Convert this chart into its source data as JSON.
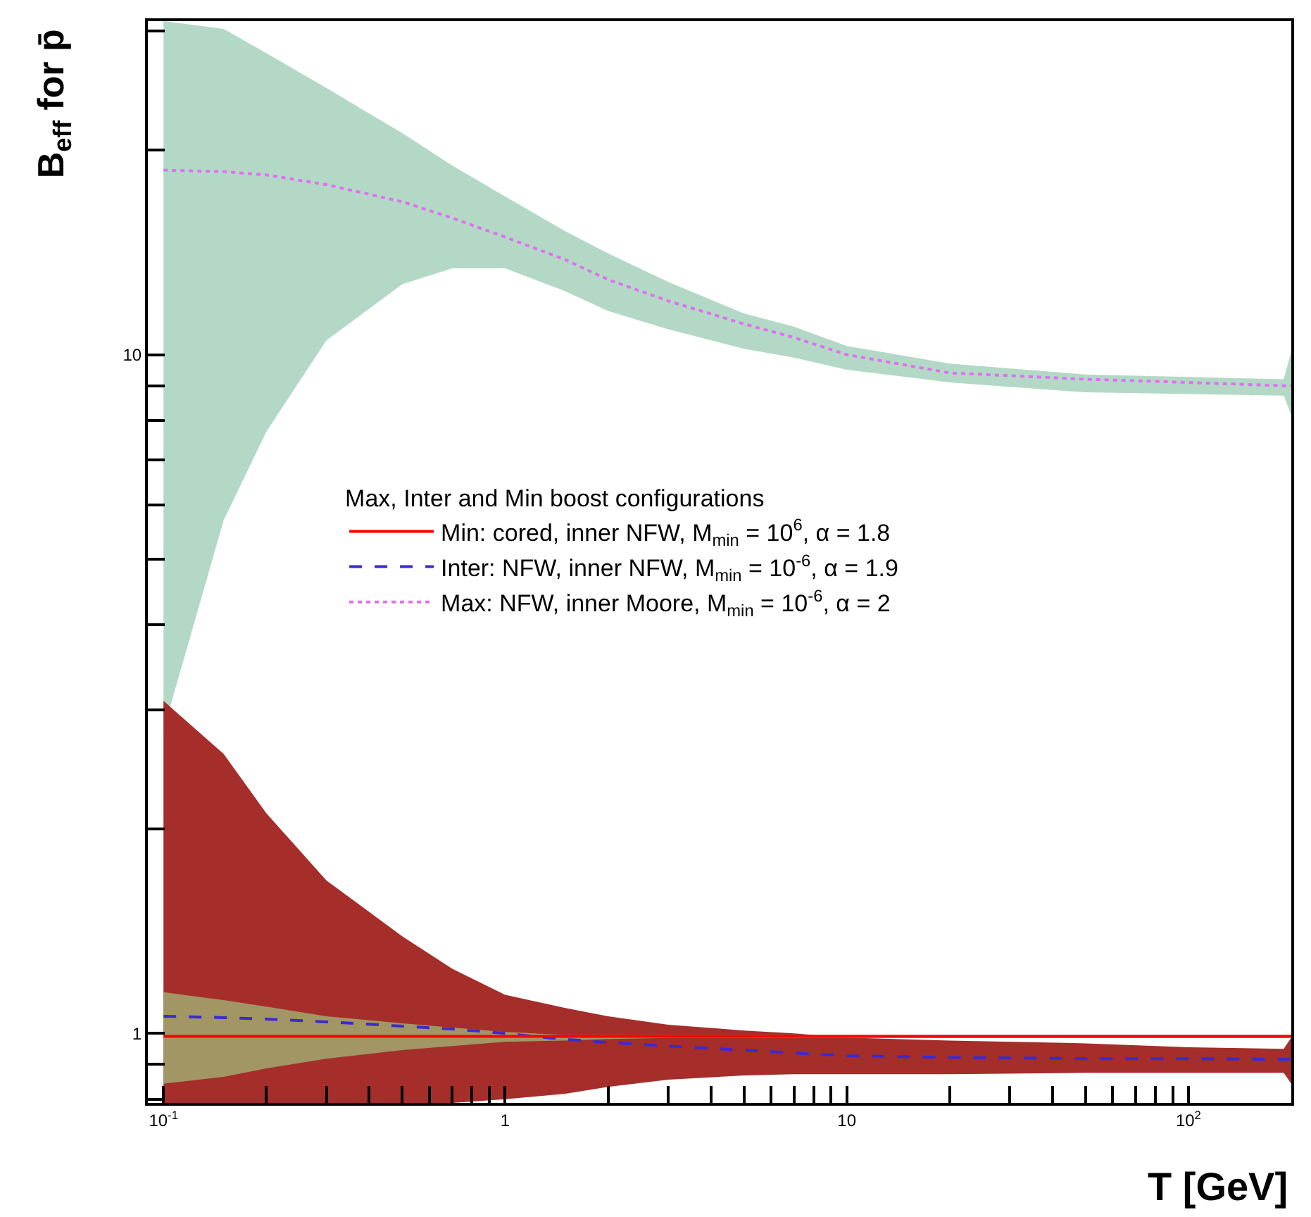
{
  "chart_data": {
    "type": "line",
    "xlabel": "T [GeV]",
    "ylabel": "B$_{eff}$ for p̄",
    "legend_title": "Max, Inter and Min boost configurations",
    "legend": "center",
    "grid": false,
    "log": "xy",
    "marker": "none",
    "x": [
      0.1,
      0.15,
      0.2,
      0.3,
      0.5,
      0.7,
      1,
      1.5,
      2,
      3,
      5,
      7,
      10,
      20,
      50,
      100,
      190,
      200
    ],
    "xlim": [
      0.09,
      200
    ],
    "ylim": [
      0.79,
      31
    ],
    "xticks": [
      {
        "value": 0.1,
        "label": "10$^{-1}$"
      },
      {
        "value": 0.2,
        "label": null
      },
      {
        "value": 0.3,
        "label": null
      },
      {
        "value": 0.4,
        "label": null
      },
      {
        "value": 0.5,
        "label": null
      },
      {
        "value": 0.6,
        "label": null
      },
      {
        "value": 0.7,
        "label": null
      },
      {
        "value": 0.8,
        "label": null
      },
      {
        "value": 0.9,
        "label": null
      },
      1,
      {
        "value": 2,
        "label": null
      },
      {
        "value": 3,
        "label": null
      },
      {
        "value": 4,
        "label": null
      },
      {
        "value": 5,
        "label": null
      },
      {
        "value": 6,
        "label": null
      },
      {
        "value": 7,
        "label": null
      },
      {
        "value": 8,
        "label": null
      },
      {
        "value": 9,
        "label": null
      },
      10,
      {
        "value": 20,
        "label": null
      },
      {
        "value": 30,
        "label": null
      },
      {
        "value": 40,
        "label": null
      },
      {
        "value": 50,
        "label": null
      },
      {
        "value": 60,
        "label": null
      },
      {
        "value": 70,
        "label": null
      },
      {
        "value": 80,
        "label": null
      },
      {
        "value": 90,
        "label": null
      },
      {
        "value": 100,
        "label": "10$^{2}$"
      }
    ],
    "yticks": [
      {
        "value": 0.8,
        "label": null
      },
      {
        "value": 0.9,
        "label": null
      },
      1,
      {
        "value": 2,
        "label": null
      },
      {
        "value": 3,
        "label": null
      },
      {
        "value": 4,
        "label": null
      },
      {
        "value": 5,
        "label": null
      },
      {
        "value": 6,
        "label": null
      },
      {
        "value": 7,
        "label": null
      },
      {
        "value": 8,
        "label": null
      },
      {
        "value": 9,
        "label": null
      },
      10,
      {
        "value": 20,
        "label": null
      },
      {
        "value": 30,
        "label": null
      }
    ],
    "colors": [
      "#b3d9c6",
      "#a52d2a",
      "#a29664"
    ],
    "series": [
      {
        "type": "line",
        "name": "Max: NFW, inner Moore, M$_{min}$ = 10$^{-6}$, α = 2",
        "color": "#e070f0",
        "line_style": "dotted",
        "values": [
          18.7,
          18.6,
          18.4,
          17.8,
          16.8,
          15.9,
          14.9,
          13.8,
          12.9,
          12,
          11.1,
          10.6,
          10,
          9.4,
          9.2,
          9.1,
          9,
          9
        ],
        "lower": [
          2.8,
          5.7,
          7.7,
          10.5,
          12.7,
          13.4,
          13.4,
          12.4,
          11.6,
          10.9,
          10.2,
          9.9,
          9.5,
          9.1,
          8.8,
          8.75,
          8.7,
          8.15
        ],
        "upper": [
          31,
          30.2,
          27.8,
          24.7,
          21.2,
          19,
          17.1,
          15.2,
          14.1,
          12.8,
          11.5,
          11,
          10.3,
          9.7,
          9.35,
          9.27,
          9.2,
          10.1
        ]
      },
      {
        "type": "line",
        "name": "Inter: NFW, inner NFW, M$_{min}$ = 10$^{-6}$, α = 1.9",
        "color": "#3a2ad0",
        "line_style": "dashed",
        "values": [
          1.06,
          1.055,
          1.05,
          1.04,
          1.025,
          1.015,
          1,
          0.98,
          0.97,
          0.958,
          0.945,
          0.936,
          0.927,
          0.922,
          0.918,
          0.918,
          0.916,
          0.916
        ],
        "lower": [
          0.79,
          0.79,
          0.79,
          0.79,
          0.79,
          0.79,
          0.8,
          0.815,
          0.834,
          0.855,
          0.867,
          0.871,
          0.871,
          0.871,
          0.875,
          0.875,
          0.875,
          0.843
        ],
        "upper": [
          3.09,
          2.58,
          2.11,
          1.68,
          1.39,
          1.245,
          1.14,
          1.09,
          1.06,
          1.03,
          1.01,
          1,
          0.986,
          0.976,
          0.967,
          0.954,
          0.949,
          0.986
        ]
      },
      {
        "type": "line",
        "name": "Min: cored, inner NFW, M$_{min}$ = 10$^{6}$, α = 1.8",
        "color": "#ff0000",
        "line_style": "solid",
        "values": [
          0.99,
          0.99,
          0.99,
          0.99,
          0.99,
          0.99,
          0.99,
          0.99,
          0.99,
          0.99,
          0.99,
          0.99,
          0.99,
          0.99,
          0.99,
          0.99,
          0.99,
          0.99
        ],
        "lower": [
          0.843,
          0.863,
          0.888,
          0.918,
          0.945,
          0.958,
          0.972,
          0.976,
          0.981,
          0.985,
          0.985,
          0.985,
          0.985,
          0.985,
          0.985,
          0.985,
          0.985,
          0.985
        ],
        "upper": [
          1.15,
          1.12,
          1.095,
          1.06,
          1.035,
          1.02,
          1.005,
          0.995,
          0.995,
          0.995,
          0.995,
          0.995,
          0.995,
          0.995,
          0.995,
          0.995,
          0.995,
          0.995
        ]
      }
    ]
  }
}
